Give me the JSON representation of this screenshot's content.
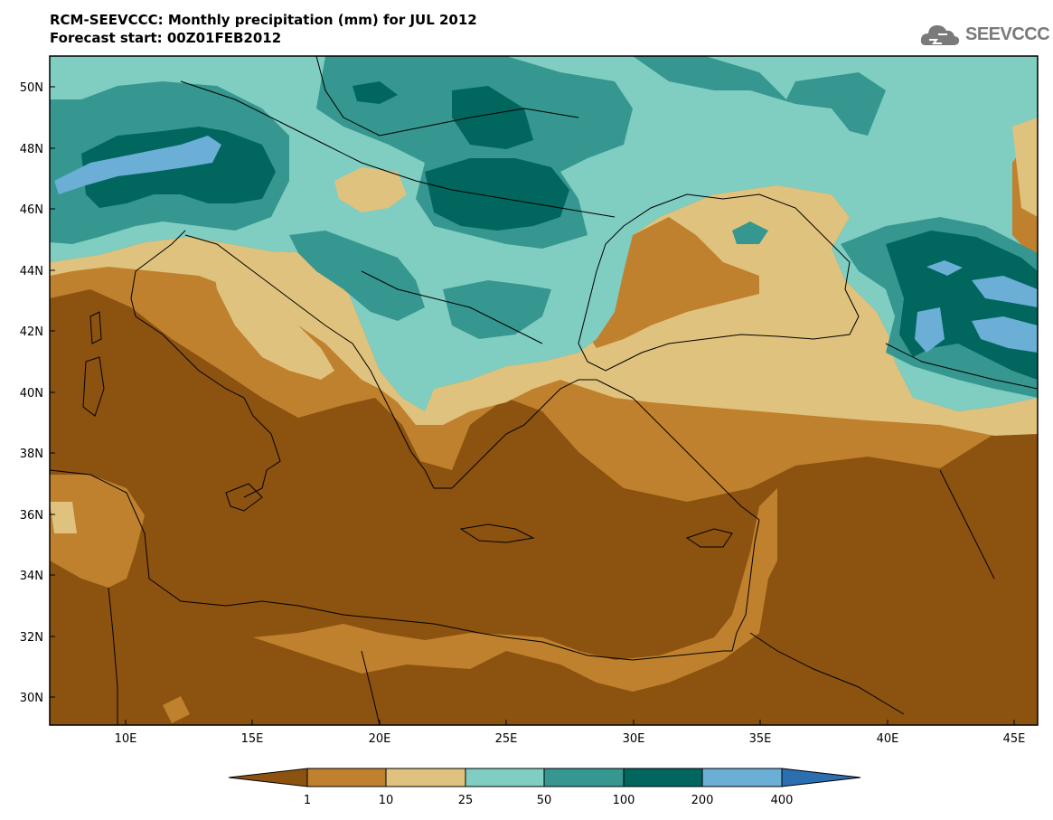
{
  "title": {
    "line1": "RCM-SEEVCCC: Monthly precipitation (mm) for JUL 2012",
    "line2": "Forecast start: 00Z01FEB2012"
  },
  "logo": {
    "text": "SEEVCCC",
    "icon": "cloud-icon"
  },
  "map": {
    "lat_labels": [
      "50N",
      "48N",
      "46N",
      "44N",
      "42N",
      "40N",
      "38N",
      "36N",
      "34N",
      "32N",
      "30N"
    ],
    "lon_labels": [
      "10E",
      "15E",
      "20E",
      "25E",
      "30E",
      "35E",
      "40E",
      "45E"
    ]
  },
  "colorbar": {
    "colors": [
      "#8c5210",
      "#bf812d",
      "#dfc27d",
      "#80cdc1",
      "#35978f",
      "#01665e",
      "#6baed6",
      "#2c6fb0"
    ],
    "tick_labels": [
      "1",
      "10",
      "25",
      "50",
      "100",
      "200",
      "400"
    ]
  }
}
